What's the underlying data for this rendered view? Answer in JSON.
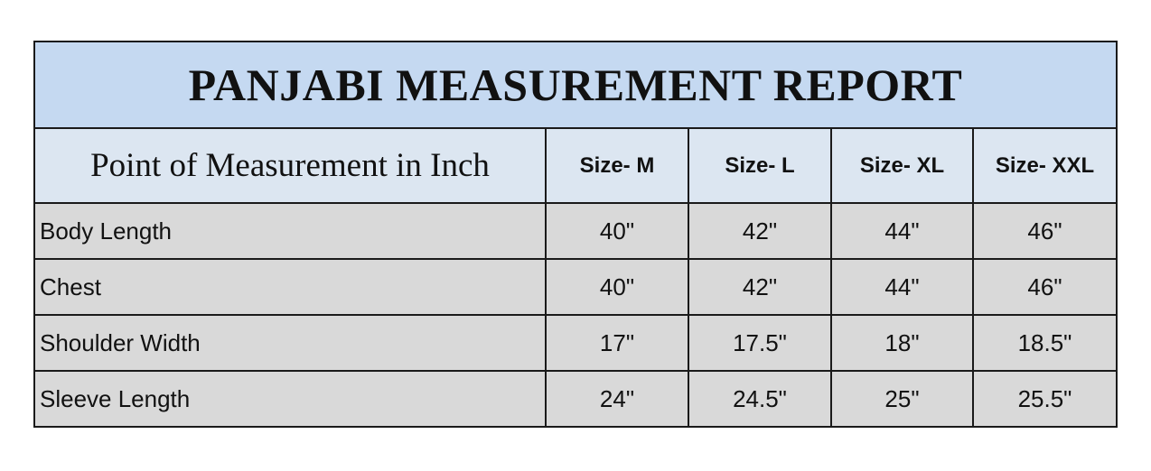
{
  "title": "PANJABI MEASUREMENT REPORT",
  "header": {
    "point_label": "Point of Measurement in Inch",
    "sizes": [
      "Size- M",
      "Size- L",
      "Size- XL",
      "Size- XXL"
    ]
  },
  "colors": {
    "title_bg": "#c5d9f1",
    "header_bg": "#dce6f1",
    "row_bg": "#d9d9d9"
  },
  "rows": [
    {
      "label": "Body Length",
      "values": [
        "40\"",
        "42\"",
        "44\"",
        "46\""
      ]
    },
    {
      "label": "Chest",
      "values": [
        "40\"",
        "42\"",
        "44\"",
        "46\""
      ]
    },
    {
      "label": "Shoulder Width",
      "values": [
        "17\"",
        "17.5\"",
        "18\"",
        "18.5\""
      ]
    },
    {
      "label": "Sleeve Length",
      "values": [
        "24\"",
        "24.5\"",
        "25\"",
        "25.5\""
      ]
    }
  ]
}
